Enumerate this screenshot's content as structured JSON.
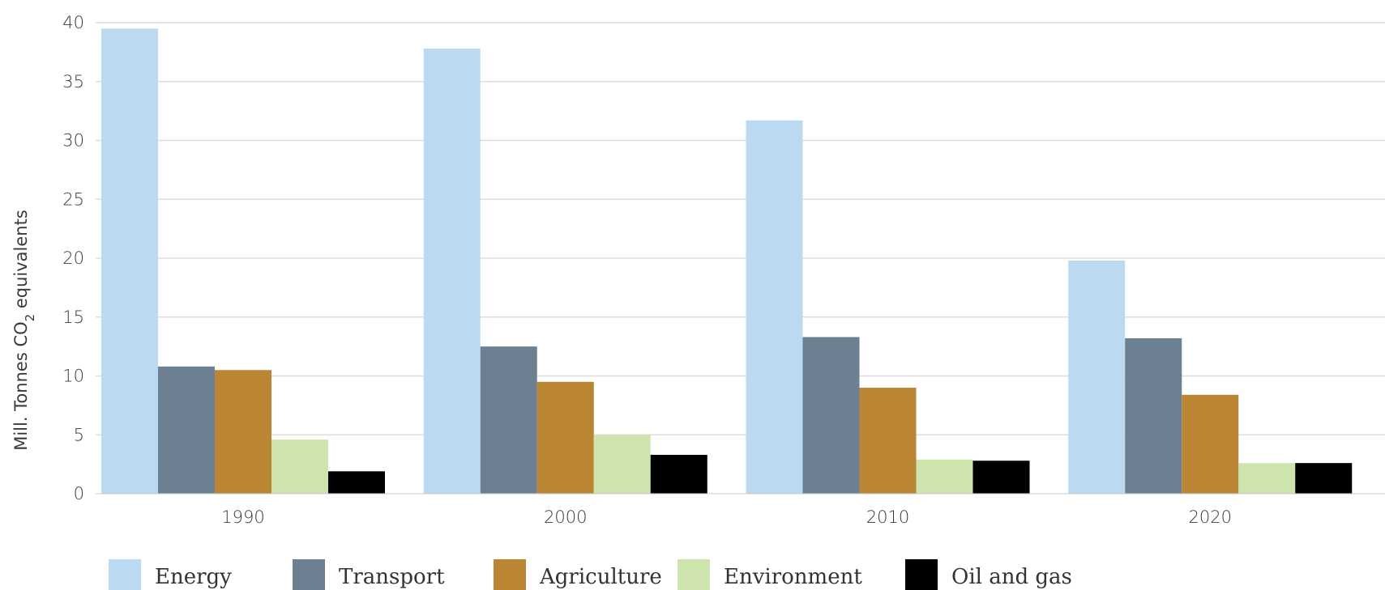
{
  "chart_data": {
    "type": "bar",
    "categories": [
      "1990",
      "2000",
      "2010",
      "2020"
    ],
    "series": [
      {
        "name": "Energy",
        "color": "#bcd9f2",
        "values": [
          39.5,
          37.8,
          31.7,
          19.8
        ]
      },
      {
        "name": "Transport",
        "color": "#6c8091",
        "values": [
          10.8,
          12.5,
          13.3,
          13.2
        ]
      },
      {
        "name": "Agriculture",
        "color": "#bb8633",
        "values": [
          10.5,
          9.5,
          9.0,
          8.4
        ]
      },
      {
        "name": "Environment",
        "color": "#cde4ae",
        "values": [
          4.6,
          5.0,
          2.9,
          2.6
        ]
      },
      {
        "name": "Oil and gas",
        "color": "#000000",
        "values": [
          1.9,
          3.3,
          2.8,
          2.6
        ]
      }
    ],
    "ylabel_prefix": "Mill. Tonnes CO",
    "ylabel_sub": "2",
    "ylabel_suffix": " equivalents",
    "ylim": [
      0,
      40
    ],
    "yticks": [
      "0",
      "5",
      "10",
      "15",
      "20",
      "25",
      "30",
      "35",
      "40"
    ],
    "grid": true,
    "legend_position": "bottom"
  }
}
